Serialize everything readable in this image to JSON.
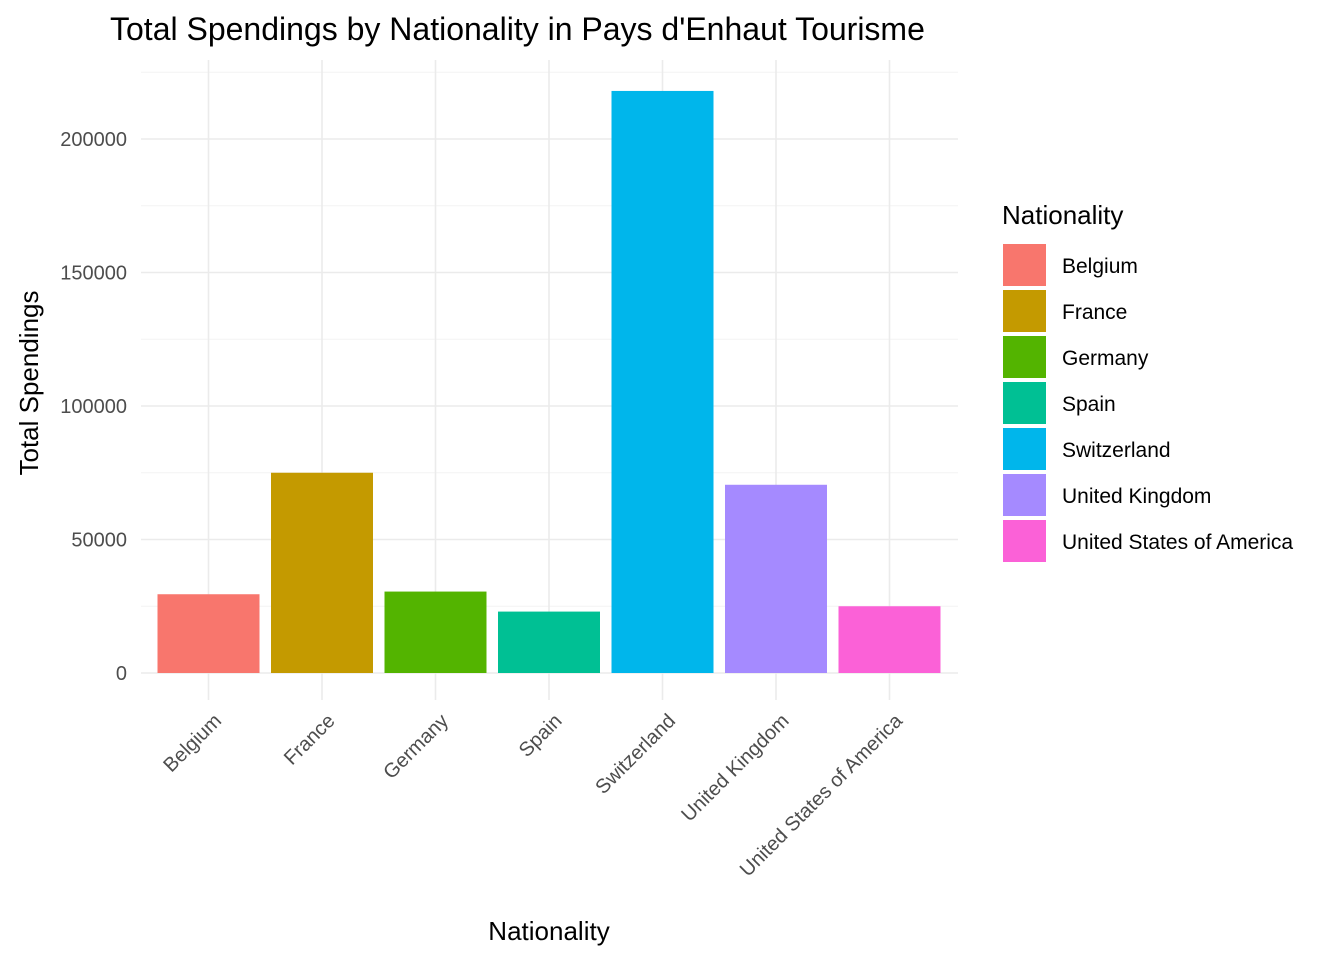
{
  "chart_data": {
    "type": "bar",
    "title": "Total Spendings by Nationality in Pays d'Enhaut Tourisme",
    "xlabel": "Nationality",
    "ylabel": "Total Spendings",
    "categories": [
      "Belgium",
      "France",
      "Germany",
      "Spain",
      "Switzerland",
      "United Kingdom",
      "United States of America"
    ],
    "values": [
      29500,
      75000,
      30500,
      23000,
      218000,
      70500,
      25000
    ],
    "colors": [
      "#F8766D",
      "#C49A00",
      "#53B400",
      "#00C094",
      "#00B6EB",
      "#A58AFF",
      "#FB61D7"
    ],
    "yticks": [
      0,
      50000,
      100000,
      150000,
      200000
    ],
    "ylim": [
      -10000,
      228000
    ],
    "grid": true,
    "legend": {
      "title": "Nationality",
      "position": "right",
      "entries": [
        "Belgium",
        "France",
        "Germany",
        "Spain",
        "Switzerland",
        "United Kingdom",
        "United States of America"
      ]
    }
  }
}
